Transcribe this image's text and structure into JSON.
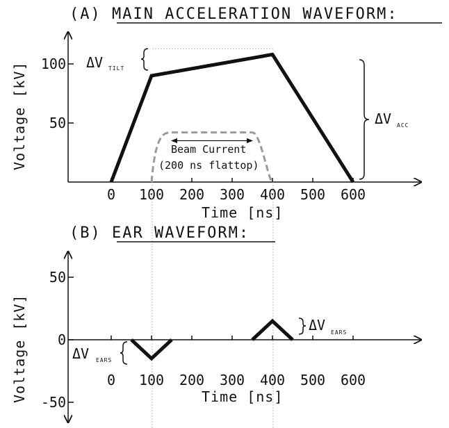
{
  "chart_data": [
    {
      "id": "main",
      "type": "line",
      "title": "(A) MAIN ACCELERATION WAVEFORM:",
      "xlabel": "Time [ns]",
      "ylabel": "Voltage [kV]",
      "x_ticks": [
        0,
        100,
        200,
        300,
        400,
        500,
        600
      ],
      "y_ticks": [
        50,
        100
      ],
      "xlim": [
        -200,
        700
      ],
      "ylim": [
        0,
        125
      ],
      "grid": false,
      "series": [
        {
          "x": [
            0,
            100,
            400,
            600
          ],
          "y": [
            0,
            90,
            108,
            0
          ]
        }
      ],
      "beam_current": {
        "label_line1": "Beam Current",
        "label_line2": "(200 ns flattop)",
        "x": [
          100,
          150,
          350,
          400
        ],
        "y": [
          0,
          42,
          42,
          0
        ],
        "arrow_x": [
          150,
          350
        ],
        "arrow_y": 35
      },
      "annotations": {
        "tilt_main": "ΔV",
        "tilt_sub": "TILT",
        "acc_main": "ΔV",
        "acc_sub": "ACC"
      }
    },
    {
      "id": "ears",
      "type": "line",
      "title": "(B) EAR WAVEFORM:",
      "xlabel": "Time [ns]",
      "ylabel": "Voltage [kV]",
      "x_ticks": [
        0,
        100,
        200,
        300,
        400,
        500,
        600
      ],
      "y_ticks": [
        -50,
        0,
        50
      ],
      "xlim": [
        -200,
        700
      ],
      "ylim": [
        -65,
        70
      ],
      "grid": false,
      "series": [
        {
          "x": [
            50,
            100,
            150
          ],
          "y": [
            0,
            -15,
            0
          ]
        },
        {
          "x": [
            350,
            400,
            450
          ],
          "y": [
            0,
            15,
            0
          ]
        }
      ],
      "annotations": {
        "ears_left_main": "ΔV",
        "ears_left_sub": "EARS",
        "ears_right_main": "ΔV",
        "ears_right_sub": "EARS"
      }
    }
  ]
}
